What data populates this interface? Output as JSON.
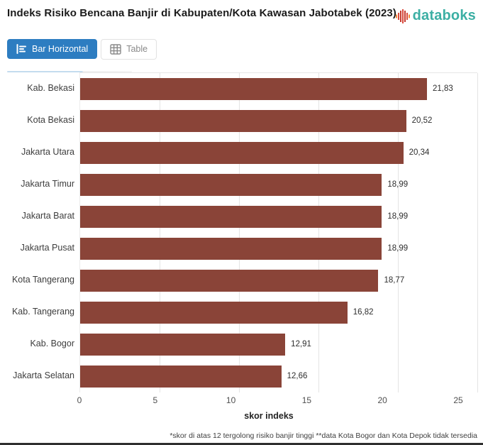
{
  "header": {
    "title": "Indeks Risiko Bencana Banjir di Kabupaten/Kota Kawasan Jabotabek (2023)",
    "logo_text": "databoks",
    "logo_color": "#3cafa4"
  },
  "toolbar": {
    "bar_horizontal_label": "Bar Horizontal",
    "table_label": "Table",
    "active_color": "#2d7dc1"
  },
  "chart_data": {
    "type": "bar",
    "orientation": "horizontal",
    "categories": [
      "Kab. Bekasi",
      "Kota Bekasi",
      "Jakarta Utara",
      "Jakarta Timur",
      "Jakarta Barat",
      "Jakarta Pusat",
      "Kota Tangerang",
      "Kab. Tangerang",
      "Kab. Bogor",
      "Jakarta Selatan"
    ],
    "values": [
      21.83,
      20.52,
      20.34,
      18.99,
      18.99,
      18.99,
      18.77,
      16.82,
      12.91,
      12.66
    ],
    "values_display": [
      "21,83",
      "20,52",
      "20,34",
      "18,99",
      "18,99",
      "18,99",
      "18,77",
      "16,82",
      "12,91",
      "12,66"
    ],
    "title": "Indeks Risiko Bencana Banjir di Kabupaten/Kota Kawasan Jabotabek (2023)",
    "xlabel": "skor indeks",
    "ylabel": "",
    "xlim": [
      0,
      25
    ],
    "xticks": [
      0,
      5,
      10,
      15,
      20,
      25
    ],
    "bar_color": "#8a4438",
    "grid": true,
    "legend_position": "none"
  },
  "footer": {
    "note": "*skor di atas 12 tergolong risiko banjir tinggi **data Kota Bogor dan Kota Depok tidak tersedia"
  }
}
